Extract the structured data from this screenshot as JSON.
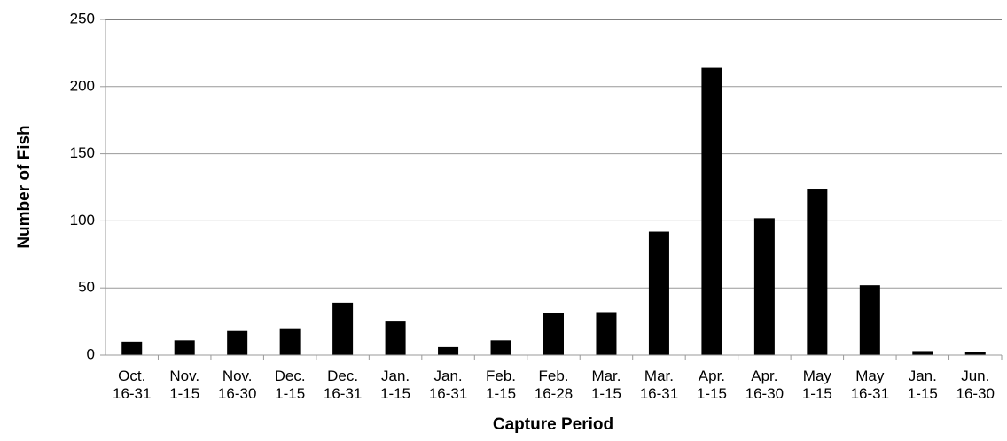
{
  "chart_data": {
    "type": "bar",
    "x_label": "Capture Period",
    "y_label": "Number of Fish",
    "categories": [
      [
        "Oct.",
        "16-31"
      ],
      [
        "Nov.",
        "1-15"
      ],
      [
        "Nov.",
        "16-30"
      ],
      [
        "Dec.",
        "1-15"
      ],
      [
        "Dec.",
        "16-31"
      ],
      [
        "Jan.",
        "1-15"
      ],
      [
        "Jan.",
        "16-31"
      ],
      [
        "Feb.",
        "1-15"
      ],
      [
        "Feb.",
        "16-28"
      ],
      [
        "Mar.",
        "1-15"
      ],
      [
        "Mar.",
        "16-31"
      ],
      [
        "Apr.",
        "1-15"
      ],
      [
        "Apr.",
        "16-30"
      ],
      [
        "May",
        "1-15"
      ],
      [
        "May",
        "16-31"
      ],
      [
        "Jan.",
        "1-15"
      ],
      [
        "Jun.",
        "16-30"
      ]
    ],
    "values": [
      10,
      11,
      18,
      20,
      39,
      25,
      6,
      11,
      31,
      32,
      92,
      214,
      102,
      124,
      52,
      3,
      2
    ],
    "color": "#000000",
    "ylim": [
      0,
      250
    ],
    "yticks": [
      0,
      50,
      100,
      150,
      200,
      250
    ],
    "grid": true
  }
}
